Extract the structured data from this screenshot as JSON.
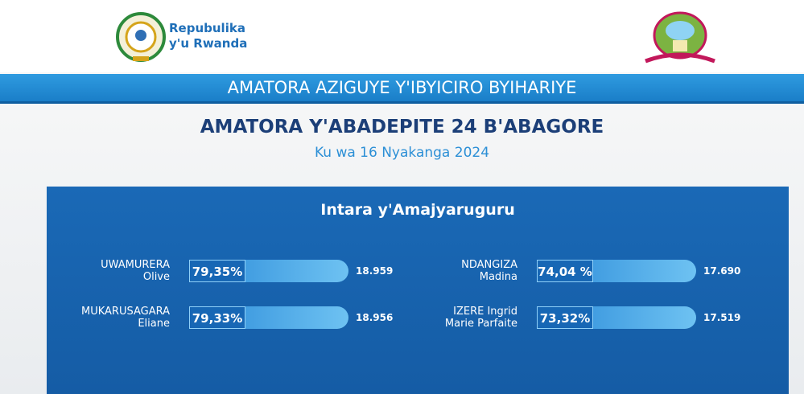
{
  "header": {
    "logo_text": [
      "Repubulika",
      "y'u Rwanda"
    ]
  },
  "banner": "AMATORA AZIGUYE Y'IBYICIRO BYIHARIYE",
  "title": "AMATORA Y'ABADEPITE 24 B'ABAGORE",
  "date": "Ku wa 16 Nyakanga 2024",
  "panel": {
    "title": "Intara y'Amajyaruguru",
    "candidates": [
      {
        "name": [
          "UWAMURERA",
          "Olive"
        ],
        "percent": "79,35%",
        "votes": "18.959"
      },
      {
        "name": [
          "MUKARUSAGARA",
          "Eliane"
        ],
        "percent": "79,33%",
        "votes": "18.956"
      },
      {
        "name": [
          "NDANGIZA",
          "Madina"
        ],
        "percent": "74,04 %",
        "votes": "17.690"
      },
      {
        "name": [
          "IZERE Ingrid",
          "Marie Parfaite"
        ],
        "percent": "73,32%",
        "votes": "17.519"
      }
    ]
  }
}
